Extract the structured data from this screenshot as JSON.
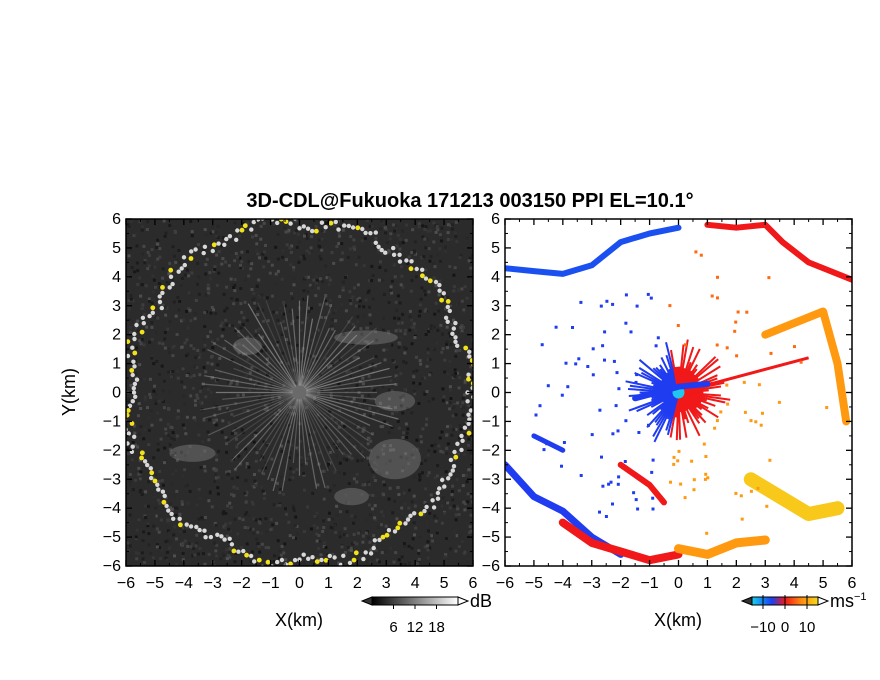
{
  "title": "3D-CDL@Fukuoka 171213 003150 PPI EL=10.1°",
  "chart_data": [
    {
      "type": "heatmap",
      "panel": "left",
      "quantity": "reflectivity",
      "xlabel": "X(km)",
      "ylabel": "Y(km)",
      "xlim": [
        -6,
        6
      ],
      "ylim": [
        -6,
        6
      ],
      "x_ticks": [
        "−6",
        "−5",
        "−4",
        "−3",
        "−2",
        "−1",
        "0",
        "1",
        "2",
        "3",
        "4",
        "5",
        "6"
      ],
      "y_ticks": [
        "−6",
        "−5",
        "−4",
        "−3",
        "−2",
        "−1",
        "0",
        "1",
        "2",
        "3",
        "4",
        "5",
        "6"
      ],
      "colorbar": {
        "label": "dB",
        "ticks": [
          6,
          12,
          18
        ],
        "tick_labels": [
          "6",
          "12",
          "18"
        ],
        "colormap": "grayscale with yellow high end"
      },
      "range_ring_km": 5.9,
      "colors": {
        "background": "#2a2a2a",
        "ring": "#d8d8d8",
        "high": "#f2e21a"
      }
    },
    {
      "type": "heatmap",
      "panel": "right",
      "quantity": "Doppler velocity",
      "xlabel": "X(km)",
      "ylabel": "",
      "xlim": [
        -6,
        6
      ],
      "ylim": [
        -6,
        6
      ],
      "x_ticks": [
        "−6",
        "−5",
        "−4",
        "−3",
        "−2",
        "−1",
        "0",
        "1",
        "2",
        "3",
        "4",
        "5",
        "6"
      ],
      "y_ticks": [
        "−6",
        "−5",
        "−4",
        "−3",
        "−2",
        "−1",
        "0",
        "1",
        "2",
        "3",
        "4",
        "5",
        "6"
      ],
      "colorbar": {
        "label": "ms",
        "label_exponent": "−1",
        "ticks": [
          -10,
          0,
          10
        ],
        "tick_labels": [
          "−10",
          "0",
          "10"
        ],
        "colormap": "cyan-blue-red-orange-yellow"
      },
      "colors": {
        "negative": "#1f3cf0",
        "near_zero": "#f01818",
        "positive": "#ff9a10",
        "high": "#f8c81a",
        "center": "#20c8f0"
      }
    }
  ]
}
